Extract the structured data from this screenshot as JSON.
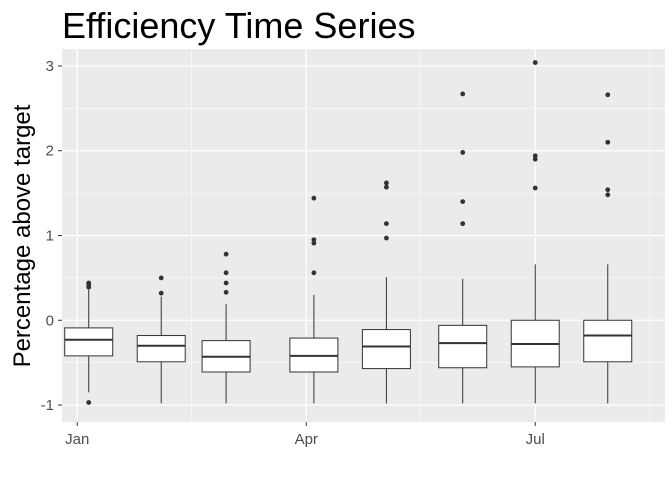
{
  "chart_data": {
    "type": "boxplot",
    "title": "Efficiency Time Series",
    "xlabel": "",
    "ylabel": "Percentage above target",
    "ylim": [
      -1.2,
      3.2
    ],
    "y_ticks": [
      -1,
      0,
      1,
      2,
      3
    ],
    "y_tick_labels": [
      "-1",
      "0",
      "1",
      "2",
      "3"
    ],
    "x_ticks": [
      {
        "month": 1,
        "label": "Jan"
      },
      {
        "month": 4,
        "label": "Apr"
      },
      {
        "month": 7,
        "label": "Jul"
      }
    ],
    "x_range": [
      0.8,
      8.7
    ],
    "grid": true,
    "legend": "none",
    "colors": {
      "panel": "#EBEBEB",
      "grid": "#FFFFFF",
      "box_fill": "#FFFFFF",
      "line": "#333333",
      "outlier": "#333333"
    },
    "boxes": [
      {
        "month": 1.15,
        "whisker_low": -0.85,
        "q1": -0.42,
        "median": -0.23,
        "q3": -0.09,
        "whisker_high": 0.36,
        "outliers": [
          -0.97,
          0.39,
          0.42,
          0.44
        ]
      },
      {
        "month": 2.1,
        "whisker_low": -0.98,
        "q1": -0.49,
        "median": -0.3,
        "q3": -0.18,
        "whisker_high": 0.28,
        "outliers": [
          0.32,
          0.5
        ]
      },
      {
        "month": 2.95,
        "whisker_low": -0.98,
        "q1": -0.61,
        "median": -0.43,
        "q3": -0.24,
        "whisker_high": 0.19,
        "outliers": [
          0.33,
          0.44,
          0.56,
          0.78
        ]
      },
      {
        "month": 4.1,
        "whisker_low": -0.98,
        "q1": -0.61,
        "median": -0.42,
        "q3": -0.21,
        "whisker_high": 0.3,
        "outliers": [
          0.56,
          0.91,
          0.95,
          1.44
        ]
      },
      {
        "month": 5.05,
        "whisker_low": -0.98,
        "q1": -0.57,
        "median": -0.31,
        "q3": -0.11,
        "whisker_high": 0.51,
        "outliers": [
          0.97,
          1.14,
          1.57,
          1.62
        ]
      },
      {
        "month": 6.05,
        "whisker_low": -0.98,
        "q1": -0.56,
        "median": -0.27,
        "q3": -0.06,
        "whisker_high": 0.49,
        "outliers": [
          1.14,
          1.4,
          1.98,
          2.67
        ]
      },
      {
        "month": 7.0,
        "whisker_low": -0.98,
        "q1": -0.55,
        "median": -0.28,
        "q3": 0.0,
        "whisker_high": 0.66,
        "outliers": [
          1.56,
          1.9,
          1.94,
          3.04
        ]
      },
      {
        "month": 7.95,
        "whisker_low": -0.98,
        "q1": -0.49,
        "median": -0.18,
        "q3": 0.0,
        "whisker_high": 0.66,
        "outliers": [
          1.48,
          1.54,
          2.1,
          2.66
        ]
      }
    ]
  }
}
